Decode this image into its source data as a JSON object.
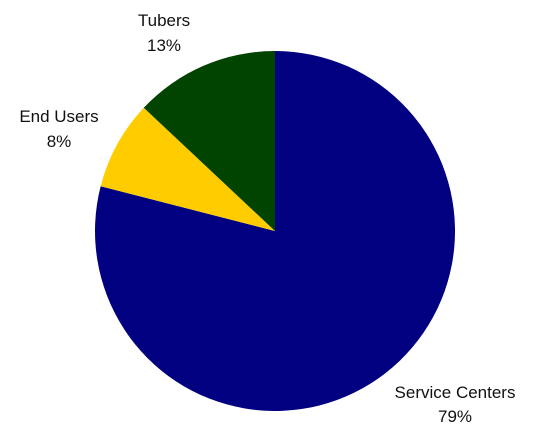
{
  "chart_data": {
    "type": "pie",
    "title": "",
    "start_angle_deg": 90,
    "direction": "clockwise",
    "slices": [
      {
        "label": "Service Centers",
        "value": 79,
        "value_label": "79%",
        "color": "#000080"
      },
      {
        "label": "End Users",
        "value": 8,
        "value_label": "8%",
        "color": "#FFCC00"
      },
      {
        "label": "Tubers",
        "value": 13,
        "value_label": "13%",
        "color": "#004400"
      }
    ]
  }
}
